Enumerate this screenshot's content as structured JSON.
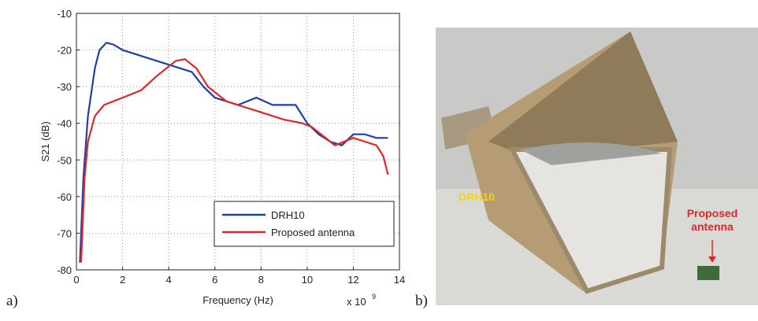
{
  "chart_data": {
    "type": "line",
    "xlabel": "Frequency (Hz)",
    "ylabel": "S21 (dB)",
    "x_multiplier_base": "x 10",
    "x_multiplier_exponent": "9",
    "xlim": [
      0,
      14
    ],
    "xticks": [
      0,
      2,
      4,
      6,
      8,
      10,
      12,
      14
    ],
    "ylim": [
      -80,
      -10
    ],
    "yticks": [
      -80,
      -70,
      -60,
      -50,
      -40,
      -30,
      -20,
      -10
    ],
    "grid": true,
    "legend": "lower right",
    "series": [
      {
        "name": "DRH10",
        "color": "#1f3fa8",
        "x": [
          0.15,
          0.3,
          0.5,
          0.8,
          1.0,
          1.3,
          1.6,
          2.0,
          3.0,
          4.0,
          5.0,
          5.5,
          6.0,
          7.0,
          7.8,
          8.5,
          9.5,
          10.0,
          10.5,
          11.0,
          11.5,
          12.0,
          12.5,
          13.0,
          13.5
        ],
        "values": [
          -78,
          -55,
          -38,
          -25,
          -20,
          -18,
          -18.5,
          -20,
          -22,
          -24,
          -26,
          -30,
          -33,
          -35,
          -33,
          -35,
          -35,
          -40,
          -43,
          -45,
          -46,
          -43,
          -43,
          -44,
          -44
        ]
      },
      {
        "name": "Proposed antenna",
        "color": "#e0262b",
        "x": [
          0.2,
          0.35,
          0.5,
          0.8,
          1.2,
          2.0,
          2.8,
          3.5,
          4.3,
          4.7,
          5.2,
          5.7,
          6.5,
          7.5,
          8.0,
          9.0,
          9.8,
          10.2,
          10.8,
          11.2,
          12.0,
          12.5,
          13.0,
          13.3,
          13.5
        ],
        "values": [
          -78,
          -55,
          -45,
          -38,
          -35,
          -33,
          -31,
          -27,
          -23,
          -22.5,
          -25,
          -30,
          -34,
          -36,
          -37,
          -39,
          -40,
          -41,
          -44,
          -46,
          -44,
          -45,
          -46,
          -49,
          -54
        ]
      }
    ]
  },
  "panel_a_label": "a)",
  "panel_b_label": "b)",
  "photo": {
    "horn_label": "DRH10",
    "antenna_label": [
      "Proposed",
      "antenna"
    ]
  }
}
